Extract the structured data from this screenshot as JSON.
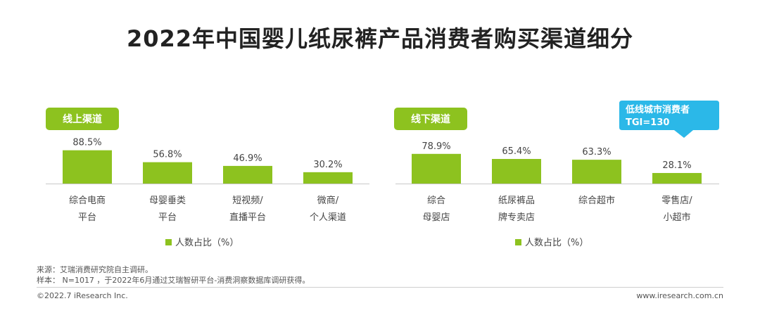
{
  "title": "2022年中国婴儿纸尿裤产品消费者购买渠道细分",
  "colors": {
    "bar": "#8dc21f",
    "tag": "#8dc21f",
    "callout": "#2bb8e8",
    "axis": "#c8c8c8"
  },
  "chart_data": [
    {
      "type": "bar",
      "panel_label": "线上渠道",
      "categories": [
        [
          "综合电商",
          "平台"
        ],
        [
          "母婴垂类",
          "平台"
        ],
        [
          "短视频/",
          "直播平台"
        ],
        [
          "微商/",
          "个人渠道"
        ]
      ],
      "value_labels": [
        "88.5%",
        "56.8%",
        "46.9%",
        "30.2%"
      ],
      "series": [
        {
          "name": "人数占比（%）",
          "values": [
            88.5,
            56.8,
            46.9,
            30.2
          ]
        }
      ],
      "legend": "人数占比（%）",
      "legend_position": "bottom",
      "grid": false
    },
    {
      "type": "bar",
      "panel_label": "线下渠道",
      "categories": [
        [
          "综合",
          "母婴店"
        ],
        [
          "纸尿裤品",
          "牌专卖店"
        ],
        [
          "综合超市"
        ],
        [
          "零售店/",
          "小超市"
        ]
      ],
      "value_labels": [
        "78.9%",
        "65.4%",
        "63.3%",
        "28.1%"
      ],
      "series": [
        {
          "name": "人数占比（%）",
          "values": [
            78.9,
            65.4,
            63.3,
            28.1
          ]
        }
      ],
      "legend": "人数占比（%）",
      "legend_position": "bottom",
      "grid": false,
      "callout": [
        "低线城市消费者",
        "TGI=130"
      ]
    }
  ],
  "notes": {
    "source": "来源：艾瑞消费研究院自主调研。",
    "sample": "样本：  N=1017 ，于2022年6月通过艾瑞智研平台-消费洞察数据库调研获得。"
  },
  "footer": {
    "copyright": "©2022.7 iResearch Inc.",
    "website": "www.iresearch.com.cn"
  }
}
